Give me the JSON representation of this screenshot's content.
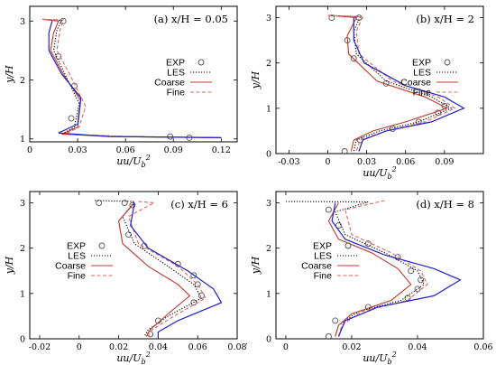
{
  "footnote": ".",
  "colors": {
    "exp": "#555555",
    "les": "#000000",
    "coarse": "#c0392b",
    "fine": "#e06666",
    "blue": "#2222cc"
  },
  "chart_data": [
    {
      "type": "line",
      "title": "(a) x/H = 0.05",
      "xlabel": "uu/U_b²",
      "ylabel": "y/H",
      "xlim": [
        0,
        0.13
      ],
      "ylim": [
        0.95,
        3.25
      ],
      "xticks": [
        "0",
        "0.03",
        "0.06",
        "0.09",
        "0.12"
      ],
      "xtick_values": [
        0,
        0.03,
        0.06,
        0.09,
        0.12
      ],
      "yticks": [
        "1",
        "2",
        "3"
      ],
      "ytick_values": [
        1,
        2,
        3
      ],
      "legend": {
        "position": "right",
        "entries": [
          "EXP",
          "LES",
          "Coarse",
          "Fine"
        ]
      },
      "series": [
        {
          "name": "EXP",
          "style": "markers",
          "points": [
            [
              0.021,
              3.0
            ],
            [
              0.018,
              2.4
            ],
            [
              0.028,
              1.9
            ],
            [
              0.026,
              1.35
            ],
            [
              0.088,
              1.04
            ],
            [
              0.1,
              1.02
            ]
          ]
        },
        {
          "name": "LES",
          "style": "dotted",
          "points": [
            [
              0.008,
              3.03
            ],
            [
              0.02,
              3.01
            ],
            [
              0.017,
              2.85
            ],
            [
              0.015,
              2.5
            ],
            [
              0.022,
              2.1
            ],
            [
              0.031,
              1.6
            ],
            [
              0.028,
              1.2
            ],
            [
              0.02,
              1.08
            ],
            [
              0.06,
              1.04
            ],
            [
              0.12,
              1.02
            ]
          ]
        },
        {
          "name": "Coarse",
          "style": "solid",
          "points": [
            [
              0.008,
              3.03
            ],
            [
              0.018,
              3.0
            ],
            [
              0.015,
              2.8
            ],
            [
              0.013,
              2.5
            ],
            [
              0.021,
              2.1
            ],
            [
              0.032,
              1.65
            ],
            [
              0.03,
              1.2
            ],
            [
              0.02,
              1.08
            ],
            [
              0.05,
              1.04
            ],
            [
              0.12,
              1.02
            ]
          ]
        },
        {
          "name": "Fine",
          "style": "dashed",
          "points": [
            [
              0.008,
              3.03
            ],
            [
              0.021,
              3.02
            ],
            [
              0.019,
              2.85
            ],
            [
              0.017,
              2.5
            ],
            [
              0.025,
              2.1
            ],
            [
              0.035,
              1.55
            ],
            [
              0.031,
              1.2
            ],
            [
              0.022,
              1.08
            ],
            [
              0.06,
              1.04
            ],
            [
              0.12,
              1.02
            ]
          ]
        },
        {
          "name": "",
          "style": "blue",
          "points": [
            [
              0.014,
              3.0
            ],
            [
              0.012,
              2.8
            ],
            [
              0.012,
              2.5
            ],
            [
              0.02,
              2.1
            ],
            [
              0.032,
              1.7
            ],
            [
              0.03,
              1.25
            ],
            [
              0.018,
              1.1
            ],
            [
              0.05,
              1.04
            ],
            [
              0.12,
              1.02
            ]
          ]
        }
      ]
    },
    {
      "type": "line",
      "title": "(b) x/H = 2",
      "xlabel": "uu/U_b²",
      "ylabel": "y/H",
      "xlim": [
        -0.04,
        0.12
      ],
      "ylim": [
        0,
        3.25
      ],
      "xticks": [
        "-0.03",
        "0",
        "0.03",
        "0.06",
        "0.09"
      ],
      "xtick_values": [
        -0.03,
        0,
        0.03,
        0.06,
        0.09
      ],
      "yticks": [
        "0",
        "1",
        "2",
        "3"
      ],
      "ytick_values": [
        0,
        1,
        2,
        3
      ],
      "legend": {
        "position": "right",
        "entries": [
          "EXP",
          "LES",
          "Coarse",
          "Fine"
        ]
      },
      "series": [
        {
          "name": "EXP",
          "style": "markers",
          "points": [
            [
              0.003,
              3.0
            ],
            [
              0.024,
              3.0
            ],
            [
              0.015,
              2.5
            ],
            [
              0.02,
              2.1
            ],
            [
              0.045,
              1.55
            ],
            [
              0.09,
              1.05
            ],
            [
              0.085,
              0.9
            ],
            [
              0.07,
              0.7
            ],
            [
              0.05,
              0.55
            ],
            [
              0.025,
              0.3
            ],
            [
              0.013,
              0.05
            ]
          ]
        },
        {
          "name": "LES",
          "style": "dotted",
          "points": [
            [
              0.0,
              3.05
            ],
            [
              0.025,
              3.02
            ],
            [
              0.02,
              2.7
            ],
            [
              0.022,
              2.2
            ],
            [
              0.045,
              1.6
            ],
            [
              0.08,
              1.25
            ],
            [
              0.095,
              1.0
            ],
            [
              0.07,
              0.7
            ],
            [
              0.04,
              0.5
            ],
            [
              0.022,
              0.3
            ],
            [
              0.02,
              0.05
            ]
          ]
        },
        {
          "name": "Coarse",
          "style": "solid",
          "points": [
            [
              0.0,
              3.05
            ],
            [
              0.022,
              3.0
            ],
            [
              0.015,
              2.6
            ],
            [
              0.016,
              2.2
            ],
            [
              0.038,
              1.6
            ],
            [
              0.075,
              1.25
            ],
            [
              0.092,
              1.0
            ],
            [
              0.06,
              0.7
            ],
            [
              0.035,
              0.5
            ],
            [
              0.02,
              0.3
            ],
            [
              0.018,
              0.05
            ]
          ]
        },
        {
          "name": "Fine",
          "style": "dashed",
          "points": [
            [
              0.0,
              3.05
            ],
            [
              0.027,
              3.02
            ],
            [
              0.022,
              2.7
            ],
            [
              0.024,
              2.2
            ],
            [
              0.05,
              1.6
            ],
            [
              0.085,
              1.25
            ],
            [
              0.098,
              1.0
            ],
            [
              0.075,
              0.7
            ],
            [
              0.045,
              0.5
            ],
            [
              0.025,
              0.3
            ],
            [
              0.022,
              0.05
            ]
          ]
        },
        {
          "name": "",
          "style": "blue",
          "points": [
            [
              0.02,
              3.0
            ],
            [
              0.02,
              2.5
            ],
            [
              0.028,
              2.0
            ],
            [
              0.06,
              1.5
            ],
            [
              0.09,
              1.25
            ],
            [
              0.105,
              1.0
            ],
            [
              0.08,
              0.7
            ],
            [
              0.045,
              0.5
            ],
            [
              0.027,
              0.3
            ],
            [
              0.024,
              0.05
            ]
          ]
        }
      ]
    },
    {
      "type": "line",
      "title": "(c) x/H = 6",
      "xlabel": "uu/U_b²",
      "ylabel": "y/H",
      "xlim": [
        -0.025,
        0.08
      ],
      "ylim": [
        0,
        3.25
      ],
      "xticks": [
        "-0.02",
        "0",
        "0.02",
        "0.04",
        "0.06",
        "0.08"
      ],
      "xtick_values": [
        -0.02,
        0,
        0.02,
        0.04,
        0.06,
        0.08
      ],
      "yticks": [
        "0",
        "1",
        "2",
        "3"
      ],
      "ytick_values": [
        0,
        1,
        2,
        3
      ],
      "legend": {
        "position": "left",
        "entries": [
          "EXP",
          "LES",
          "Coarse",
          "Fine"
        ]
      },
      "series": [
        {
          "name": "EXP",
          "style": "markers",
          "points": [
            [
              0.01,
              3.0
            ],
            [
              0.023,
              3.0
            ],
            [
              0.027,
              2.95
            ],
            [
              0.025,
              2.3
            ],
            [
              0.033,
              2.05
            ],
            [
              0.05,
              1.65
            ],
            [
              0.058,
              1.4
            ],
            [
              0.06,
              1.2
            ],
            [
              0.062,
              0.95
            ],
            [
              0.058,
              0.8
            ],
            [
              0.04,
              0.4
            ],
            [
              0.036,
              0.1
            ]
          ]
        },
        {
          "name": "LES",
          "style": "dotted",
          "points": [
            [
              0.008,
              3.05
            ],
            [
              0.028,
              3.03
            ],
            [
              0.022,
              2.7
            ],
            [
              0.028,
              2.1
            ],
            [
              0.045,
              1.6
            ],
            [
              0.058,
              1.2
            ],
            [
              0.062,
              0.9
            ],
            [
              0.045,
              0.5
            ],
            [
              0.035,
              0.2
            ],
            [
              0.033,
              0.05
            ]
          ]
        },
        {
          "name": "Coarse",
          "style": "solid",
          "points": [
            [
              0.028,
              3.0
            ],
            [
              0.02,
              2.6
            ],
            [
              0.022,
              2.1
            ],
            [
              0.035,
              1.6
            ],
            [
              0.05,
              1.2
            ],
            [
              0.056,
              0.95
            ],
            [
              0.045,
              0.55
            ],
            [
              0.036,
              0.2
            ],
            [
              0.034,
              0.05
            ]
          ]
        },
        {
          "name": "Fine",
          "style": "dashed",
          "points": [
            [
              0.03,
              3.03
            ],
            [
              0.038,
              3.0
            ],
            [
              0.025,
              2.7
            ],
            [
              0.03,
              2.1
            ],
            [
              0.05,
              1.6
            ],
            [
              0.06,
              1.2
            ],
            [
              0.064,
              0.9
            ],
            [
              0.048,
              0.5
            ],
            [
              0.037,
              0.2
            ],
            [
              0.035,
              0.05
            ]
          ]
        },
        {
          "name": "",
          "style": "blue",
          "points": [
            [
              0.028,
              3.0
            ],
            [
              0.026,
              2.5
            ],
            [
              0.035,
              2.0
            ],
            [
              0.055,
              1.5
            ],
            [
              0.068,
              1.1
            ],
            [
              0.072,
              0.8
            ],
            [
              0.05,
              0.4
            ],
            [
              0.04,
              0.15
            ],
            [
              0.04,
              0.02
            ]
          ]
        }
      ]
    },
    {
      "type": "line",
      "title": "(d) x/H = 8",
      "xlabel": "uu/U_b²",
      "ylabel": "y/H",
      "xlim": [
        -0.003,
        0.06
      ],
      "ylim": [
        0,
        3.25
      ],
      "xticks": [
        "0",
        "0.02",
        "0.04",
        "0.06"
      ],
      "xtick_values": [
        0,
        0.02,
        0.04,
        0.06
      ],
      "yticks": [
        "0",
        "1",
        "2",
        "3"
      ],
      "ytick_values": [
        0,
        1,
        2,
        3
      ],
      "legend": {
        "position": "left",
        "entries": [
          "EXP",
          "LES",
          "Coarse",
          "Fine"
        ]
      },
      "series": [
        {
          "name": "EXP",
          "style": "markers",
          "points": [
            [
              0.013,
              2.85
            ],
            [
              0.016,
              2.5
            ],
            [
              0.025,
              2.1
            ],
            [
              0.034,
              1.8
            ],
            [
              0.038,
              1.5
            ],
            [
              0.041,
              1.3
            ],
            [
              0.04,
              1.1
            ],
            [
              0.037,
              0.9
            ],
            [
              0.025,
              0.7
            ],
            [
              0.015,
              0.4
            ],
            [
              0.013,
              0.05
            ]
          ]
        },
        {
          "name": "LES",
          "style": "dotted",
          "points": [
            [
              0.0,
              3.03
            ],
            [
              0.025,
              3.02
            ],
            [
              0.015,
              2.8
            ],
            [
              0.018,
              2.3
            ],
            [
              0.03,
              1.9
            ],
            [
              0.04,
              1.5
            ],
            [
              0.042,
              1.2
            ],
            [
              0.035,
              0.85
            ],
            [
              0.022,
              0.6
            ],
            [
              0.016,
              0.3
            ],
            [
              0.015,
              0.05
            ]
          ]
        },
        {
          "name": "Coarse",
          "style": "solid",
          "points": [
            [
              0.016,
              3.0
            ],
            [
              0.013,
              2.6
            ],
            [
              0.016,
              2.2
            ],
            [
              0.026,
              1.9
            ],
            [
              0.034,
              1.55
            ],
            [
              0.038,
              1.2
            ],
            [
              0.032,
              0.85
            ],
            [
              0.02,
              0.55
            ],
            [
              0.016,
              0.3
            ],
            [
              0.015,
              0.05
            ]
          ]
        },
        {
          "name": "Fine",
          "style": "dashed",
          "points": [
            [
              0.03,
              3.05
            ],
            [
              0.018,
              2.85
            ],
            [
              0.02,
              2.3
            ],
            [
              0.032,
              1.9
            ],
            [
              0.041,
              1.5
            ],
            [
              0.043,
              1.2
            ],
            [
              0.037,
              0.85
            ],
            [
              0.023,
              0.6
            ],
            [
              0.017,
              0.3
            ],
            [
              0.016,
              0.05
            ]
          ]
        },
        {
          "name": "",
          "style": "blue",
          "points": [
            [
              0.015,
              3.0
            ],
            [
              0.014,
              2.6
            ],
            [
              0.018,
              2.2
            ],
            [
              0.03,
              1.85
            ],
            [
              0.045,
              1.55
            ],
            [
              0.053,
              1.3
            ],
            [
              0.045,
              0.95
            ],
            [
              0.028,
              0.7
            ],
            [
              0.018,
              0.4
            ],
            [
              0.016,
              0.05
            ]
          ]
        }
      ]
    }
  ]
}
